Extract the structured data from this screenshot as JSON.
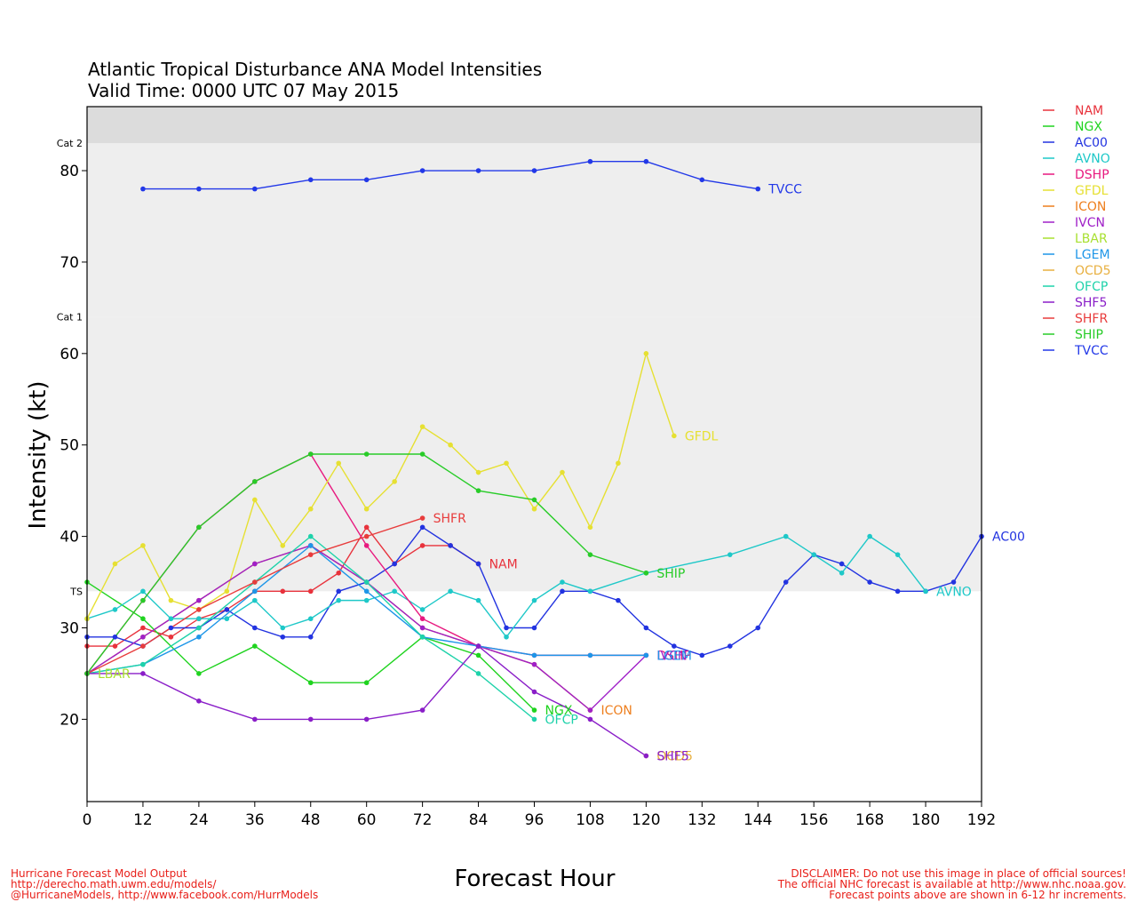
{
  "chart_data": {
    "type": "line",
    "title": "Atlantic Tropical Disturbance ANA Model Intensities",
    "subtitle": "Valid Time: 0000 UTC 07 May 2015",
    "xlabel": "Forecast Hour",
    "ylabel": "Intensity (kt)",
    "xlim": [
      0,
      192
    ],
    "ylim": [
      11,
      87
    ],
    "x_ticks": [
      0,
      12,
      24,
      36,
      48,
      60,
      72,
      84,
      96,
      108,
      120,
      132,
      144,
      156,
      168,
      180,
      192
    ],
    "y_ticks": [
      20,
      30,
      40,
      50,
      60,
      70,
      80
    ],
    "bands": [
      {
        "label": "TS",
        "from": 34,
        "to": 64,
        "color": "#eeeeee"
      },
      {
        "label": "Cat 1",
        "from": 64,
        "to": 83,
        "color": "#eeeeee"
      },
      {
        "label": "Cat 2",
        "from": 83,
        "to": 96,
        "color": "#dcdcdc"
      }
    ],
    "series": [
      {
        "name": "NAM",
        "color": "#e8323c",
        "label_text": "NAM",
        "points": [
          [
            0,
            28
          ],
          [
            6,
            28
          ],
          [
            12,
            30
          ],
          [
            18,
            29
          ],
          [
            24,
            31
          ],
          [
            30,
            32
          ],
          [
            36,
            34
          ],
          [
            42,
            34
          ],
          [
            48,
            34
          ],
          [
            54,
            36
          ],
          [
            60,
            41
          ],
          [
            66,
            37
          ],
          [
            72,
            39
          ],
          [
            78,
            39
          ],
          [
            84,
            37
          ]
        ]
      },
      {
        "name": "NGX",
        "color": "#1fd31f",
        "label_text": "NGX",
        "points": [
          [
            0,
            35
          ],
          [
            12,
            31
          ],
          [
            24,
            25
          ],
          [
            36,
            28
          ],
          [
            48,
            24
          ],
          [
            60,
            24
          ],
          [
            72,
            29
          ],
          [
            84,
            27
          ],
          [
            96,
            21
          ]
        ]
      },
      {
        "name": "AC00",
        "color": "#2233e0",
        "label_text": "AC00",
        "points": [
          [
            0,
            29
          ],
          [
            6,
            29
          ],
          [
            12,
            28
          ],
          [
            18,
            30
          ],
          [
            24,
            30
          ],
          [
            30,
            32
          ],
          [
            36,
            30
          ],
          [
            42,
            29
          ],
          [
            48,
            29
          ],
          [
            54,
            34
          ],
          [
            60,
            35
          ],
          [
            66,
            37
          ],
          [
            72,
            41
          ],
          [
            78,
            39
          ],
          [
            84,
            37
          ],
          [
            90,
            30
          ],
          [
            96,
            30
          ],
          [
            102,
            34
          ],
          [
            108,
            34
          ],
          [
            114,
            33
          ],
          [
            120,
            30
          ],
          [
            126,
            28
          ],
          [
            132,
            27
          ],
          [
            138,
            28
          ],
          [
            144,
            30
          ],
          [
            150,
            35
          ],
          [
            156,
            38
          ],
          [
            162,
            37
          ],
          [
            168,
            35
          ],
          [
            174,
            34
          ],
          [
            180,
            34
          ],
          [
            186,
            35
          ],
          [
            192,
            40
          ]
        ]
      },
      {
        "name": "AVNO",
        "color": "#1ec8c8",
        "label_text": "AVNO",
        "points": [
          [
            0,
            31
          ],
          [
            6,
            32
          ],
          [
            12,
            34
          ],
          [
            18,
            31
          ],
          [
            24,
            31
          ],
          [
            30,
            31
          ],
          [
            36,
            33
          ],
          [
            42,
            30
          ],
          [
            48,
            31
          ],
          [
            54,
            33
          ],
          [
            60,
            33
          ],
          [
            66,
            34
          ],
          [
            72,
            32
          ],
          [
            78,
            34
          ],
          [
            84,
            33
          ],
          [
            90,
            29
          ],
          [
            96,
            33
          ],
          [
            102,
            35
          ],
          [
            108,
            34
          ],
          [
            120,
            36
          ],
          [
            138,
            38
          ],
          [
            150,
            40
          ],
          [
            156,
            38
          ],
          [
            162,
            36
          ],
          [
            168,
            40
          ],
          [
            174,
            38
          ],
          [
            180,
            34
          ]
        ]
      },
      {
        "name": "DSHP",
        "color": "#e8197f",
        "label_text": "DSHP",
        "points": [
          [
            0,
            25
          ],
          [
            12,
            33
          ],
          [
            24,
            41
          ],
          [
            36,
            46
          ],
          [
            48,
            49
          ],
          [
            60,
            39
          ],
          [
            72,
            31
          ],
          [
            84,
            28
          ],
          [
            96,
            27
          ],
          [
            108,
            27
          ],
          [
            120,
            27
          ]
        ]
      },
      {
        "name": "GFDL",
        "color": "#e6e032",
        "label_text": "GFDL",
        "points": [
          [
            0,
            31
          ],
          [
            6,
            37
          ],
          [
            12,
            39
          ],
          [
            18,
            33
          ],
          [
            24,
            32
          ],
          [
            30,
            34
          ],
          [
            36,
            44
          ],
          [
            42,
            39
          ],
          [
            48,
            43
          ],
          [
            54,
            48
          ],
          [
            60,
            43
          ],
          [
            66,
            46
          ],
          [
            72,
            52
          ],
          [
            78,
            50
          ],
          [
            84,
            47
          ],
          [
            90,
            48
          ],
          [
            96,
            43
          ],
          [
            102,
            47
          ],
          [
            108,
            41
          ],
          [
            114,
            48
          ],
          [
            120,
            60
          ],
          [
            126,
            51
          ]
        ]
      },
      {
        "name": "ICON",
        "color": "#ee7f1e",
        "label_text": "ICON",
        "points": [
          [
            0,
            25
          ],
          [
            12,
            29
          ],
          [
            24,
            33
          ],
          [
            36,
            37
          ],
          [
            48,
            39
          ],
          [
            60,
            35
          ],
          [
            72,
            30
          ],
          [
            84,
            28
          ],
          [
            96,
            26
          ],
          [
            108,
            21
          ]
        ]
      },
      {
        "name": "IVCN",
        "color": "#a020c8",
        "label_text": "IVCN",
        "points": [
          [
            0,
            25
          ],
          [
            12,
            29
          ],
          [
            24,
            33
          ],
          [
            36,
            37
          ],
          [
            48,
            39
          ],
          [
            60,
            35
          ],
          [
            72,
            30
          ],
          [
            84,
            28
          ],
          [
            96,
            26
          ],
          [
            108,
            21
          ],
          [
            120,
            27
          ]
        ]
      },
      {
        "name": "LBAR",
        "color": "#a8e030",
        "label_text": "LBAR",
        "points": [
          [
            0,
            25
          ]
        ]
      },
      {
        "name": "LGEM",
        "color": "#1e96e8",
        "label_text": "LGEM",
        "points": [
          [
            0,
            25
          ],
          [
            12,
            26
          ],
          [
            24,
            29
          ],
          [
            36,
            34
          ],
          [
            48,
            39
          ],
          [
            60,
            34
          ],
          [
            72,
            29
          ],
          [
            84,
            28
          ],
          [
            96,
            27
          ],
          [
            108,
            27
          ],
          [
            120,
            27
          ]
        ]
      },
      {
        "name": "OCD5",
        "color": "#e8b040",
        "label_text": "OCD5",
        "points": [
          [
            120,
            16
          ]
        ]
      },
      {
        "name": "OFCP",
        "color": "#1ed2aa",
        "label_text": "OFCP",
        "points": [
          [
            0,
            25
          ],
          [
            12,
            26
          ],
          [
            24,
            30
          ],
          [
            36,
            35
          ],
          [
            48,
            40
          ],
          [
            60,
            35
          ],
          [
            72,
            29
          ],
          [
            84,
            25
          ],
          [
            96,
            20
          ]
        ]
      },
      {
        "name": "SHF5",
        "color": "#8a1ec8",
        "label_text": "SHF5",
        "points": [
          [
            0,
            25
          ],
          [
            12,
            25
          ],
          [
            24,
            22
          ],
          [
            36,
            20
          ],
          [
            48,
            20
          ],
          [
            60,
            20
          ],
          [
            72,
            21
          ],
          [
            84,
            28
          ],
          [
            96,
            23
          ],
          [
            108,
            20
          ],
          [
            120,
            16
          ]
        ]
      },
      {
        "name": "SHFR",
        "color": "#e83c3c",
        "label_text": "SHFR",
        "points": [
          [
            0,
            25
          ],
          [
            12,
            28
          ],
          [
            24,
            32
          ],
          [
            36,
            35
          ],
          [
            48,
            38
          ],
          [
            60,
            40
          ],
          [
            72,
            42
          ]
        ]
      },
      {
        "name": "SHIP",
        "color": "#28cc28",
        "label_text": "SHIP",
        "points": [
          [
            0,
            25
          ],
          [
            12,
            33
          ],
          [
            24,
            41
          ],
          [
            36,
            46
          ],
          [
            48,
            49
          ],
          [
            60,
            49
          ],
          [
            72,
            49
          ],
          [
            84,
            45
          ],
          [
            96,
            44
          ],
          [
            108,
            38
          ],
          [
            120,
            36
          ]
        ]
      },
      {
        "name": "TVCC",
        "color": "#2238e8",
        "label_text": "TVCC",
        "points": [
          [
            12,
            78
          ],
          [
            24,
            78
          ],
          [
            36,
            78
          ],
          [
            48,
            79
          ],
          [
            60,
            79
          ],
          [
            72,
            80
          ],
          [
            84,
            80
          ],
          [
            96,
            80
          ],
          [
            108,
            81
          ],
          [
            120,
            81
          ],
          [
            132,
            79
          ],
          [
            144,
            78
          ]
        ]
      }
    ]
  },
  "footer_left": [
    "Hurricane Forecast Model Output",
    "http://derecho.math.uwm.edu/models/",
    "@HurricaneModels, http://www.facebook.com/HurrModels"
  ],
  "footer_right": [
    "DISCLAIMER: Do not use this image in place of official sources!",
    "The official NHC forecast is available at http://www.nhc.noaa.gov.",
    "Forecast points above are shown in 6-12 hr increments."
  ]
}
